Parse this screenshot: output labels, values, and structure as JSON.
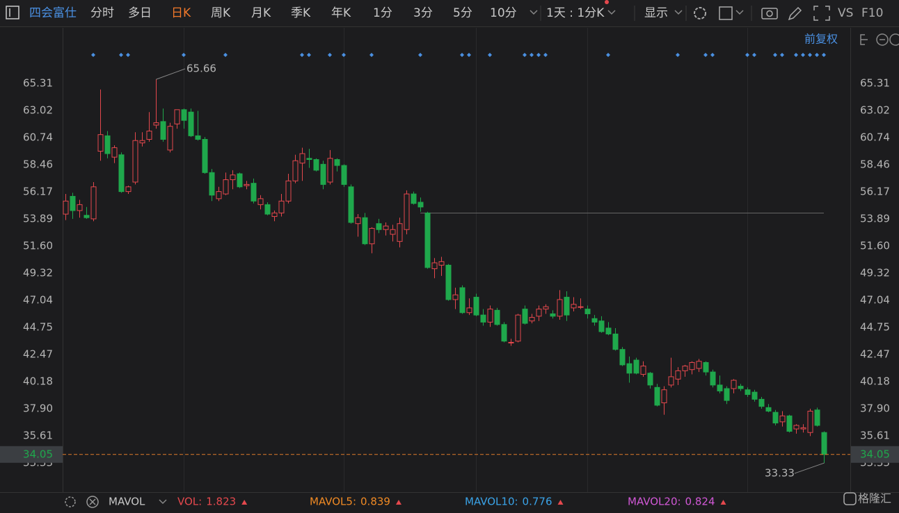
{
  "toolbar": {
    "stock": "四会富仕",
    "periods": [
      "分时",
      "多日",
      "日K",
      "周K",
      "月K",
      "季K",
      "年K",
      "1分",
      "3分",
      "5分",
      "10分"
    ],
    "selected_period": 2,
    "interval": "1天 : 1分K",
    "display": "显示",
    "vs": "VS",
    "f10": "F10"
  },
  "adjust": "前复权",
  "chart_data": {
    "type": "candlestick",
    "up_color": "#e5484d",
    "down_color": "#1fa84c",
    "open": [
      54.3,
      55.8,
      54.6,
      54.2,
      53.9,
      59.6,
      60.9,
      59.1,
      59.3,
      56.2,
      57.0,
      60.3,
      60.6,
      61.8,
      62.1,
      59.7,
      61.9,
      63.1,
      62.9,
      60.9,
      60.6,
      57.8,
      55.6,
      56.0,
      57.2,
      57.7,
      56.7,
      56.9,
      55.1,
      55.1,
      54.1,
      54.4,
      55.4,
      57.1,
      58.6,
      59.0,
      58.9,
      58.5,
      57.0,
      58.9,
      58.4,
      56.6,
      53.5,
      54.0,
      51.8,
      53.5,
      53.0,
      52.6,
      52.0,
      53.0,
      56.0,
      55.3,
      54.4,
      49.7,
      50.0,
      50.0,
      47.1,
      48.1,
      46.0,
      47.3,
      45.8,
      45.2,
      46.2,
      45.0,
      43.5,
      43.6,
      46.3,
      45.3,
      45.7,
      46.3,
      45.9,
      45.7,
      47.3,
      46.4,
      46.5,
      46.3,
      45.5,
      45.3,
      44.7,
      44.2,
      42.9,
      41.7,
      42.0,
      40.8,
      40.9,
      39.7,
      38.4,
      39.9,
      40.4,
      41.1,
      41.2,
      41.3,
      41.8,
      41.0,
      39.9,
      39.6,
      39.6,
      39.8,
      39.5,
      39.3,
      38.7,
      38.0,
      37.6,
      36.8,
      37.3,
      36.2,
      36.2,
      35.9,
      37.8,
      35.9
    ],
    "high": [
      56.0,
      56.1,
      55.5,
      54.9,
      57.0,
      64.8,
      61.3,
      60.1,
      59.5,
      56.7,
      61.2,
      61.2,
      62.9,
      65.66,
      63.2,
      62.0,
      63.1,
      63.2,
      63.2,
      63.0,
      60.8,
      58.1,
      56.6,
      57.8,
      58.0,
      57.8,
      57.1,
      57.3,
      55.9,
      55.3,
      54.6,
      56.0,
      57.7,
      59.3,
      59.9,
      59.8,
      59.0,
      58.8,
      59.7,
      59.0,
      58.5,
      56.8,
      54.3,
      54.4,
      53.2,
      53.9,
      53.6,
      53.4,
      54.0,
      56.3,
      56.2,
      55.7,
      54.5,
      50.6,
      50.7,
      50.1,
      48.1,
      48.3,
      47.2,
      47.6,
      46.3,
      46.6,
      46.4,
      45.2,
      43.8,
      45.9,
      46.6,
      45.9,
      46.6,
      46.7,
      46.2,
      47.9,
      47.8,
      47.3,
      47.2,
      46.6,
      45.8,
      45.7,
      45.2,
      44.7,
      43.1,
      42.3,
      42.2,
      41.9,
      41.0,
      40.0,
      39.8,
      42.2,
      41.4,
      41.6,
      41.9,
      42.1,
      41.9,
      41.2,
      40.7,
      39.8,
      40.4,
      40.0,
      39.7,
      39.5,
      38.9,
      38.3,
      37.8,
      37.7,
      37.4,
      36.6,
      36.6,
      37.9,
      38.0,
      36.0
    ],
    "low": [
      53.8,
      53.9,
      54.0,
      53.9,
      53.7,
      58.8,
      59.0,
      58.6,
      56.1,
      56.0,
      56.8,
      60.0,
      60.4,
      61.5,
      60.4,
      59.5,
      61.5,
      61.5,
      60.8,
      60.5,
      57.7,
      55.4,
      55.4,
      55.9,
      56.4,
      56.5,
      56.4,
      55.2,
      54.7,
      54.2,
      53.7,
      54.1,
      55.2,
      56.9,
      57.1,
      58.2,
      57.9,
      56.4,
      56.8,
      57.9,
      56.6,
      53.5,
      52.4,
      51.7,
      51.0,
      52.7,
      52.5,
      52.0,
      51.5,
      52.6,
      55.1,
      54.5,
      49.7,
      48.9,
      49.1,
      47.0,
      46.3,
      45.9,
      45.8,
      45.7,
      44.9,
      44.8,
      44.9,
      43.5,
      43.2,
      43.5,
      45.0,
      45.1,
      45.3,
      45.9,
      45.5,
      45.4,
      45.3,
      46.1,
      46.3,
      45.5,
      44.9,
      44.3,
      44.1,
      42.8,
      41.5,
      40.1,
      40.8,
      40.6,
      39.6,
      38.1,
      37.4,
      39.7,
      39.9,
      40.6,
      40.8,
      41.0,
      40.7,
      39.7,
      39.2,
      38.3,
      39.2,
      39.4,
      38.9,
      38.5,
      37.9,
      37.6,
      36.5,
      36.4,
      35.9,
      35.8,
      35.9,
      35.6,
      36.4,
      33.33
    ],
    "close": [
      55.4,
      54.6,
      55.1,
      54.0,
      56.6,
      61.0,
      59.4,
      59.9,
      56.2,
      56.6,
      60.5,
      60.5,
      61.3,
      62.0,
      60.6,
      61.7,
      63.1,
      62.2,
      60.9,
      60.6,
      57.8,
      55.9,
      56.2,
      57.2,
      57.6,
      56.6,
      56.8,
      55.4,
      55.6,
      54.3,
      54.4,
      55.4,
      57.1,
      58.8,
      59.4,
      58.9,
      58.0,
      56.8,
      59.0,
      58.4,
      56.8,
      53.6,
      54.0,
      51.8,
      53.1,
      53.0,
      53.3,
      53.0,
      53.5,
      56.0,
      55.2,
      54.9,
      49.8,
      50.2,
      50.3,
      47.1,
      47.5,
      46.0,
      46.4,
      45.8,
      45.2,
      46.3,
      45.0,
      43.6,
      43.5,
      45.8,
      45.1,
      45.6,
      46.3,
      46.5,
      45.7,
      47.1,
      45.8,
      46.7,
      46.5,
      45.9,
      45.2,
      44.4,
      44.2,
      42.9,
      41.6,
      40.9,
      40.9,
      41.5,
      39.9,
      38.2,
      39.5,
      40.6,
      41.1,
      41.5,
      41.8,
      41.9,
      41.0,
      39.9,
      39.4,
      38.6,
      40.3,
      39.6,
      39.1,
      38.7,
      38.1,
      37.7,
      36.7,
      37.3,
      36.0,
      36.5,
      36.3,
      37.7,
      36.5,
      34.05
    ],
    "ylim": [
      31.05,
      70.0
    ],
    "yticks": [
      65.31,
      63.02,
      60.74,
      58.46,
      56.17,
      53.89,
      {
        "value": 51.6,
        "label": "51.60"
      },
      49.32,
      47.04,
      44.75,
      42.47,
      40.18,
      {
        "value": 37.9,
        "label": "37.90"
      },
      35.61,
      33.33
    ],
    "max_label": 65.66,
    "min_label": 33.33,
    "last_price": 34.05,
    "last_price_color": "#e07b2a"
  },
  "indicator_bar": {
    "name": "MAVOL",
    "items": [
      {
        "name": "VOL:",
        "value": 1.823,
        "color": "#e5484d"
      },
      {
        "name": "MAVOL5:",
        "value": 0.839,
        "color": "#f08a24"
      },
      {
        "name": "MAVOL10:",
        "value": 0.776,
        "color": "#3aa3e8"
      },
      {
        "name": "MAVOL20:",
        "value": 0.824,
        "color": "#d158d6"
      }
    ]
  },
  "logo": "格隆汇"
}
